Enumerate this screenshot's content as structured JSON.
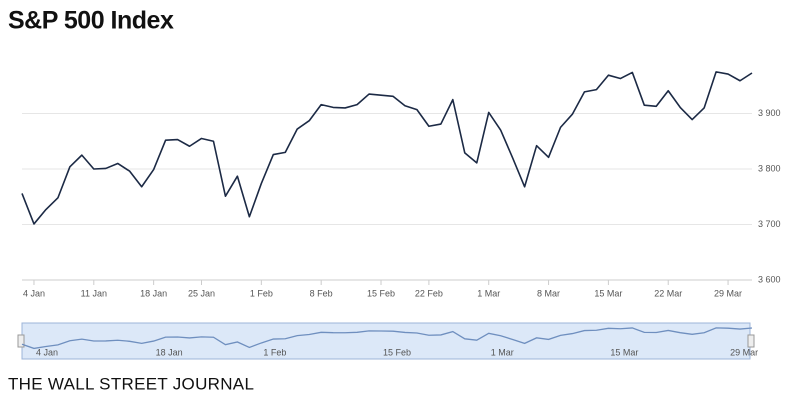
{
  "chart_data": {
    "type": "line",
    "title": "S&P 500 Index",
    "source": "THE WALL STREET JOURNAL",
    "categories": [
      null,
      "4 Jan",
      null,
      null,
      null,
      null,
      "11 Jan",
      null,
      null,
      null,
      null,
      "18 Jan",
      null,
      null,
      null,
      "25 Jan",
      null,
      null,
      null,
      null,
      "1 Feb",
      null,
      null,
      null,
      null,
      "8 Feb",
      null,
      null,
      null,
      null,
      "15 Feb",
      null,
      null,
      null,
      "22 Feb",
      null,
      null,
      null,
      null,
      "1 Mar",
      null,
      null,
      null,
      null,
      "8 Mar",
      null,
      null,
      null,
      null,
      "15 Mar",
      null,
      null,
      null,
      null,
      "22 Mar",
      null,
      null,
      null,
      null,
      "29 Mar",
      null,
      null
    ],
    "series": [
      {
        "name": "S&P 500",
        "color": "#1c2a45",
        "values": [
          3756,
          3701,
          3727,
          3748,
          3804,
          3825,
          3800,
          3801,
          3810,
          3796,
          3768,
          3799,
          3852,
          3853,
          3841,
          3855,
          3850,
          3751,
          3787,
          3714,
          3774,
          3826,
          3830,
          3872,
          3887,
          3916,
          3911,
          3910,
          3916,
          3935,
          3933,
          3931,
          3914,
          3907,
          3877,
          3881,
          3925,
          3829,
          3811,
          3902,
          3870,
          3820,
          3768,
          3842,
          3821,
          3875,
          3899,
          3939,
          3943,
          3969,
          3963,
          3974,
          3915,
          3913,
          3941,
          3911,
          3889,
          3910,
          3975,
          3971,
          3959,
          3973
        ]
      }
    ],
    "ylim": [
      3600,
      4000
    ],
    "yticks": [
      {
        "value": 3600,
        "label": "3 600"
      },
      {
        "value": 3700,
        "label": "3 700"
      },
      {
        "value": 3800,
        "label": "3 800"
      },
      {
        "value": 3900,
        "label": "3 900"
      }
    ],
    "grid": true,
    "navigator_labels": [
      "4 Jan",
      "18 Jan",
      "1 Feb",
      "15 Feb",
      "1 Mar",
      "15 Mar",
      "29 Mar"
    ],
    "navigator_color": "#6f8fbf"
  }
}
